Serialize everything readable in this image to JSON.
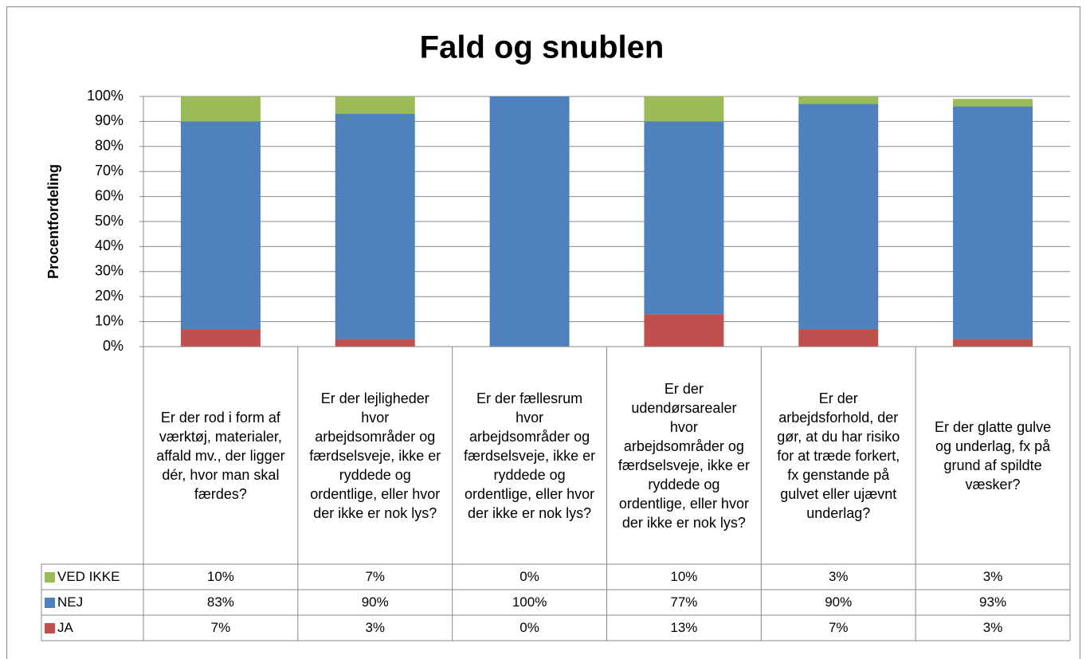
{
  "chart_data": {
    "type": "bar",
    "stacked": true,
    "title": "Fald og snublen",
    "y_label": "Procentfordeling",
    "categories": [
      "Er der rod i form af værktøj, materialer, affald mv., der ligger dér, hvor man skal færdes?",
      "Er der lejligheder hvor arbejdsområder og færdselsveje, ikke er ryddede og ordentlige, eller hvor der ikke er nok lys?",
      "Er der fællesrum hvor arbejdsområder og færdselsveje, ikke er ryddede og ordentlige, eller hvor der ikke er nok lys?",
      "Er der udendørsarealer hvor arbejdsområder og færdselsveje, ikke er ryddede og ordentlige, eller hvor der ikke er nok lys?",
      "Er der arbejdsforhold, der gør, at du har risiko for at træde forkert, fx genstande på gulvet eller ujævnt underlag?",
      "Er der glatte gulve og underlag, fx på grund af spildte væsker?"
    ],
    "series": [
      {
        "name": "JA",
        "color": "#c0504d",
        "values": [
          7,
          3,
          0,
          13,
          7,
          3
        ],
        "value_labels": [
          "7%",
          "3%",
          "0%",
          "13%",
          "7%",
          "3%"
        ]
      },
      {
        "name": "NEJ",
        "color": "#4f81bd",
        "values": [
          83,
          90,
          100,
          77,
          90,
          93
        ],
        "value_labels": [
          "83%",
          "90%",
          "100%",
          "77%",
          "90%",
          "93%"
        ]
      },
      {
        "name": "VED IKKE",
        "color": "#9bbb59",
        "values": [
          10,
          7,
          0,
          10,
          3,
          3
        ],
        "value_labels": [
          "10%",
          "7%",
          "0%",
          "10%",
          "3%",
          "3%"
        ]
      }
    ],
    "ylim": [
      0,
      100
    ],
    "yticks": [
      {
        "value": 0,
        "label": "0%"
      },
      {
        "value": 10,
        "label": "10%"
      },
      {
        "value": 20,
        "label": "20%"
      },
      {
        "value": 30,
        "label": "30%"
      },
      {
        "value": 40,
        "label": "40%"
      },
      {
        "value": 50,
        "label": "50%"
      },
      {
        "value": 60,
        "label": "60%"
      },
      {
        "value": 70,
        "label": "70%"
      },
      {
        "value": 80,
        "label": "80%"
      },
      {
        "value": 90,
        "label": "90%"
      },
      {
        "value": 100,
        "label": "100%"
      }
    ],
    "grid": true
  }
}
